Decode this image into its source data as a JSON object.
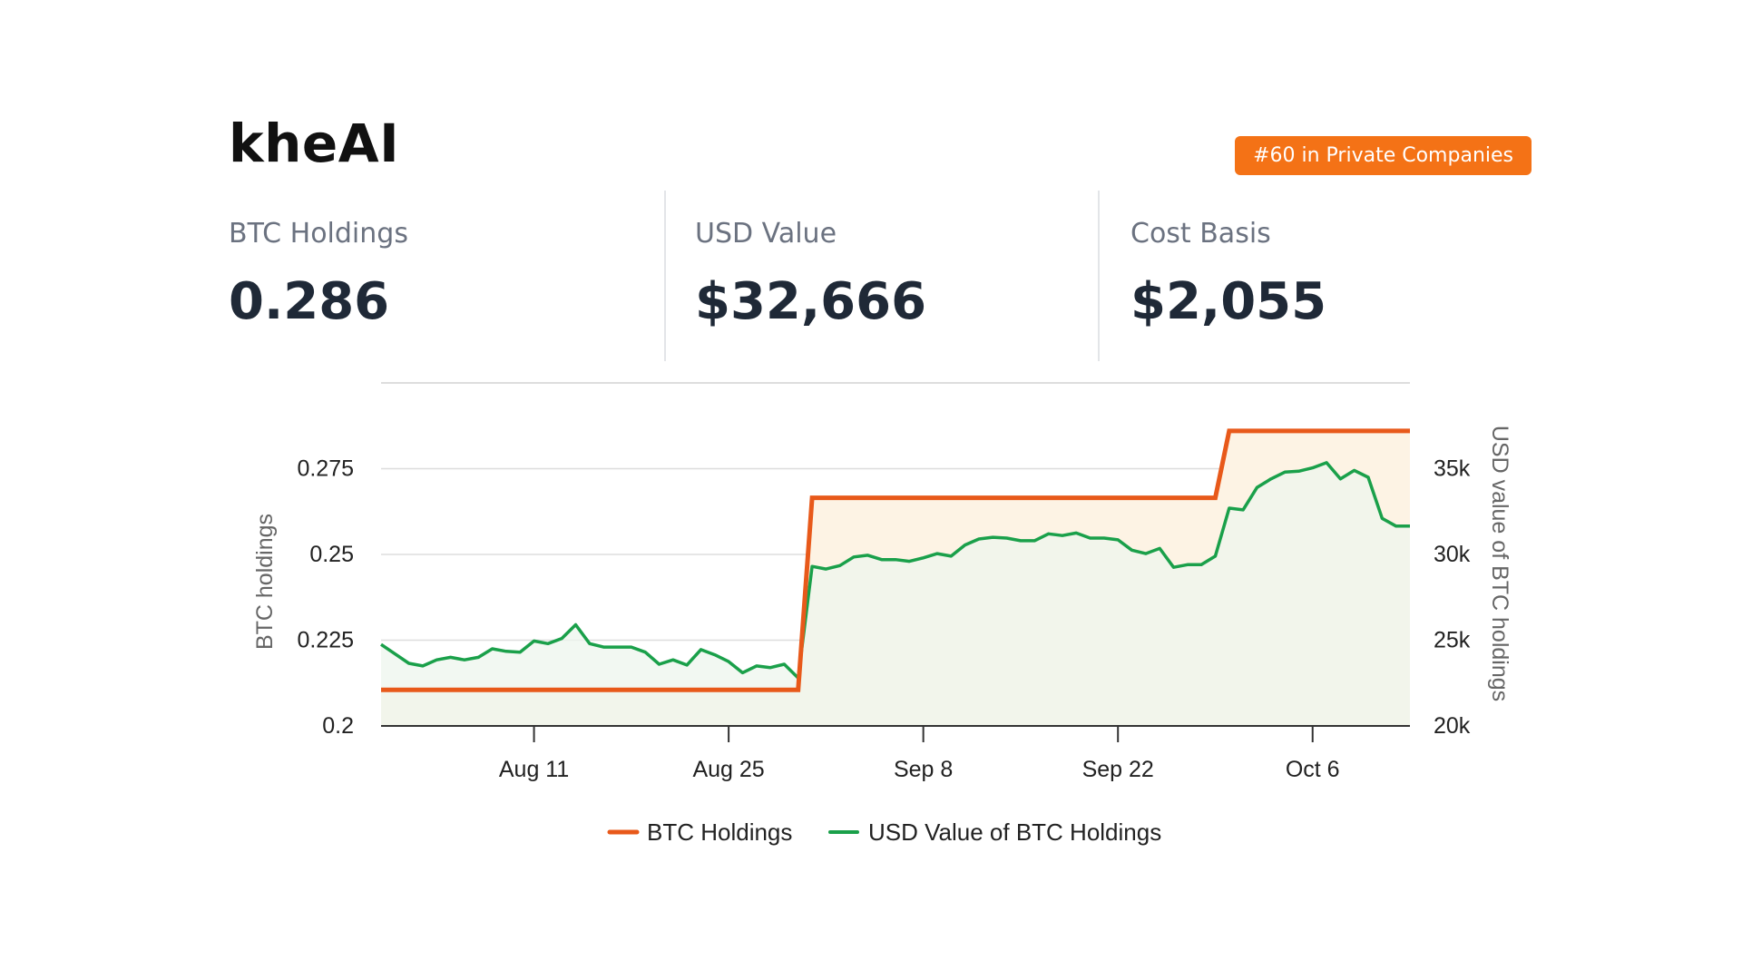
{
  "header": {
    "company_name": "kheAI",
    "rank_badge": "#60 in Private Companies"
  },
  "stats": [
    {
      "label": "BTC Holdings",
      "value": "0.286"
    },
    {
      "label": "USD Value",
      "value": "$32,666"
    },
    {
      "label": "Cost Basis",
      "value": "$2,055"
    }
  ],
  "colors": {
    "accent": "#f47216",
    "btc_line": "#e8591a",
    "usd_line": "#1aa04a",
    "btc_fill": "#fdf3e4",
    "usd_fill": "#eef6ee"
  },
  "chart_data": {
    "type": "line",
    "x_tick_labels": [
      "Aug 11",
      "Aug 25",
      "Sep 8",
      "Sep 22",
      "Oct 6"
    ],
    "x_tick_days": [
      11,
      25,
      39,
      53,
      67
    ],
    "x_range_days": [
      0,
      74
    ],
    "y_left": {
      "title": "BTC holdings",
      "ticks": [
        "0.2",
        "0.225",
        "0.25",
        "0.275"
      ],
      "tick_values": [
        0.2,
        0.225,
        0.25,
        0.275
      ],
      "range": [
        0.2,
        0.3
      ]
    },
    "y_right": {
      "title": "USD value of BTC holdings",
      "ticks": [
        "20k",
        "25k",
        "30k",
        "35k"
      ],
      "tick_values": [
        20000,
        25000,
        30000,
        35000
      ],
      "range": [
        20000,
        40000
      ]
    },
    "grid": true,
    "legend": [
      "BTC Holdings",
      "USD Value of BTC Holdings"
    ],
    "legend_position": "bottom",
    "series": [
      {
        "name": "BTC Holdings",
        "axis": "left",
        "x": [
          0,
          30,
          31,
          60,
          61,
          74
        ],
        "values": [
          0.2105,
          0.2105,
          0.2665,
          0.2665,
          0.286,
          0.286
        ]
      },
      {
        "name": "USD Value of BTC Holdings",
        "axis": "right",
        "x": [
          0,
          1,
          2,
          3,
          4,
          5,
          6,
          7,
          8,
          9,
          10,
          11,
          12,
          13,
          14,
          15,
          16,
          17,
          18,
          19,
          20,
          21,
          22,
          23,
          24,
          25,
          26,
          27,
          28,
          29,
          30,
          31,
          32,
          33,
          34,
          35,
          36,
          37,
          38,
          39,
          40,
          41,
          42,
          43,
          44,
          45,
          46,
          47,
          48,
          49,
          50,
          51,
          52,
          53,
          54,
          55,
          56,
          57,
          58,
          59,
          60,
          61,
          62,
          63,
          64,
          65,
          66,
          67,
          68,
          69,
          70,
          71,
          72,
          73,
          74
        ],
        "values": [
          24750,
          24200,
          23650,
          23500,
          23850,
          24000,
          23850,
          24000,
          24500,
          24350,
          24300,
          24950,
          24800,
          25100,
          25900,
          24800,
          24600,
          24600,
          24600,
          24300,
          23600,
          23850,
          23550,
          24450,
          24150,
          23750,
          23100,
          23500,
          23400,
          23600,
          22800,
          29300,
          29150,
          29350,
          29850,
          29950,
          29700,
          29700,
          29600,
          29800,
          30050,
          29900,
          30550,
          30900,
          31000,
          30950,
          30800,
          30800,
          31200,
          31100,
          31250,
          30950,
          30950,
          30850,
          30250,
          30050,
          30350,
          29250,
          29400,
          29400,
          29900,
          32700,
          32600,
          33900,
          34400,
          34800,
          34850,
          35050,
          35350,
          34400,
          34900,
          34500,
          32100,
          31650,
          31650
        ]
      }
    ]
  }
}
